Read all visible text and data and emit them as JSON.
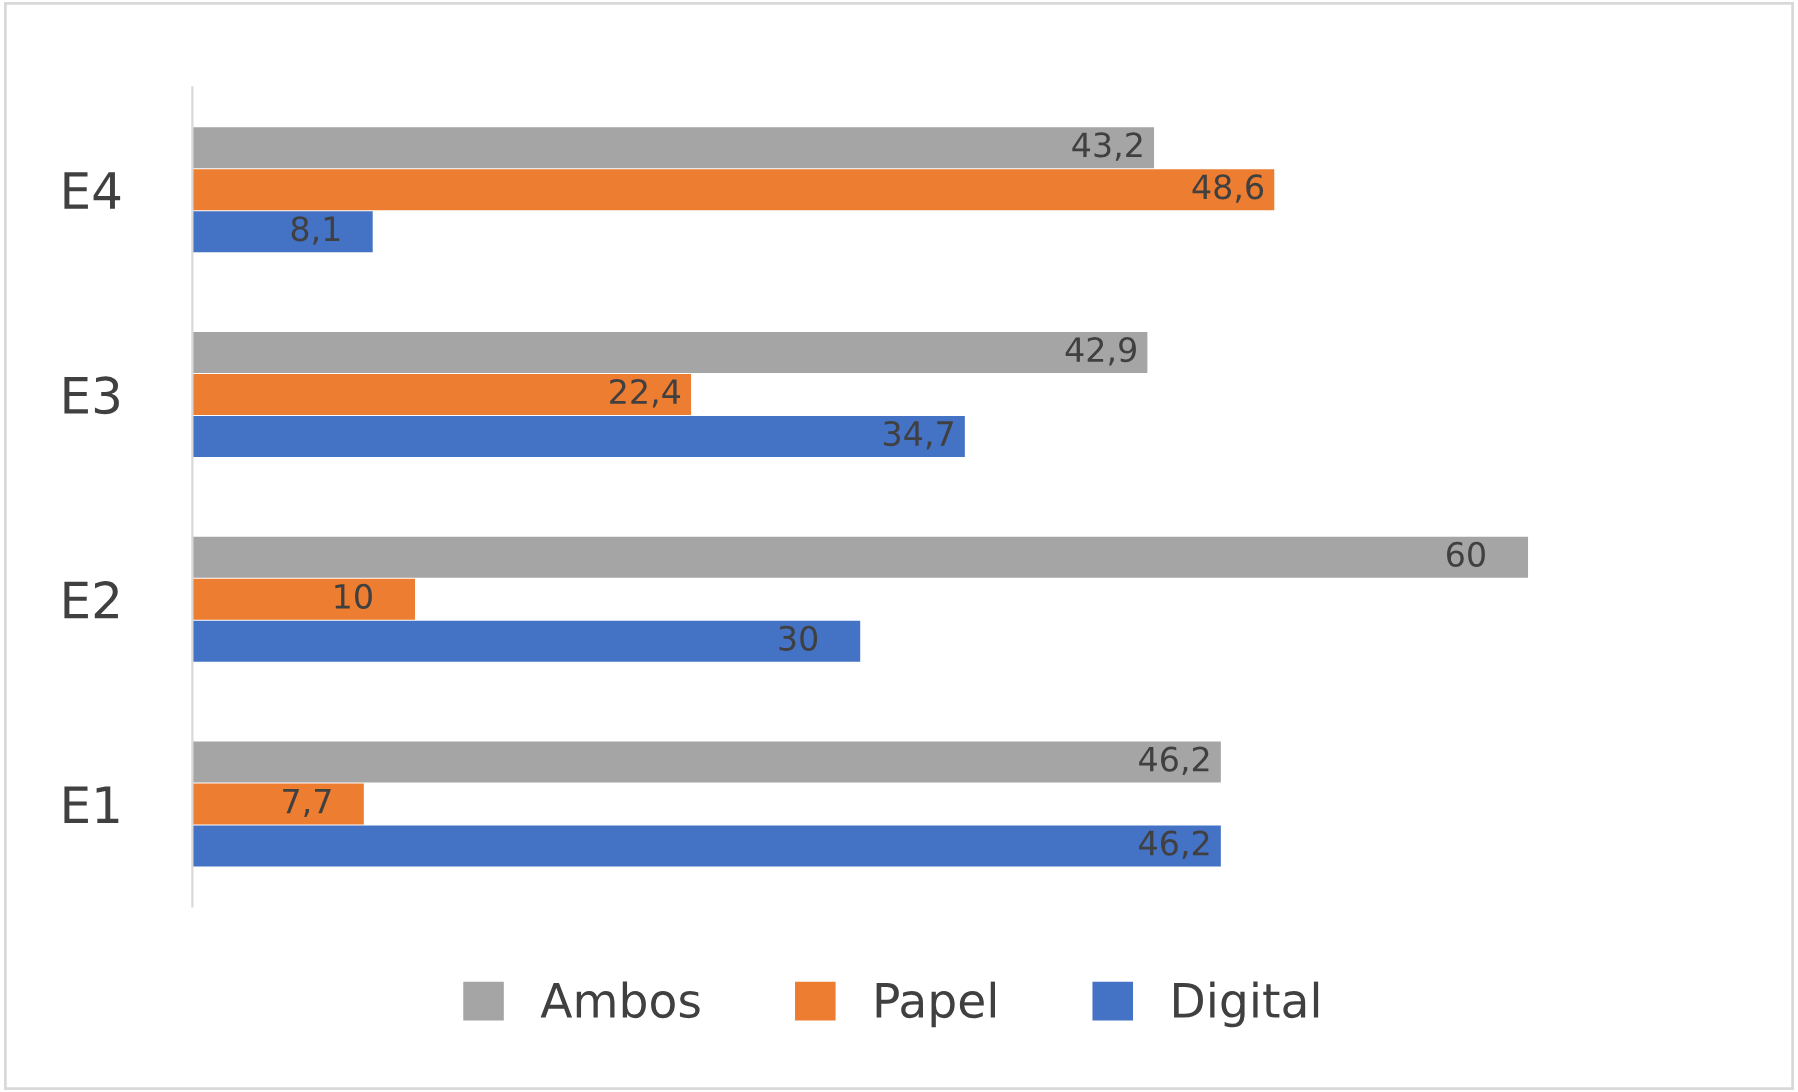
{
  "chart_data": {
    "type": "bar",
    "orientation": "horizontal",
    "categories": [
      "E4",
      "E3",
      "E2",
      "E1"
    ],
    "series": [
      {
        "name": "Ambos",
        "color": "#a5a5a5",
        "values": [
          43.2,
          42.9,
          60,
          46.2
        ],
        "value_labels": [
          "43,2",
          "42,9",
          "60",
          "46,2"
        ]
      },
      {
        "name": "Papel",
        "color": "#ed7d31",
        "values": [
          48.6,
          22.4,
          10,
          7.7
        ],
        "value_labels": [
          "48,6",
          "22,4",
          "10",
          "7,7"
        ]
      },
      {
        "name": "Digital",
        "color": "#4472c4",
        "values": [
          8.1,
          34.7,
          30,
          46.2
        ],
        "value_labels": [
          "8,1",
          "34,7",
          "30",
          "46,2"
        ]
      }
    ],
    "legend": "bottom"
  }
}
